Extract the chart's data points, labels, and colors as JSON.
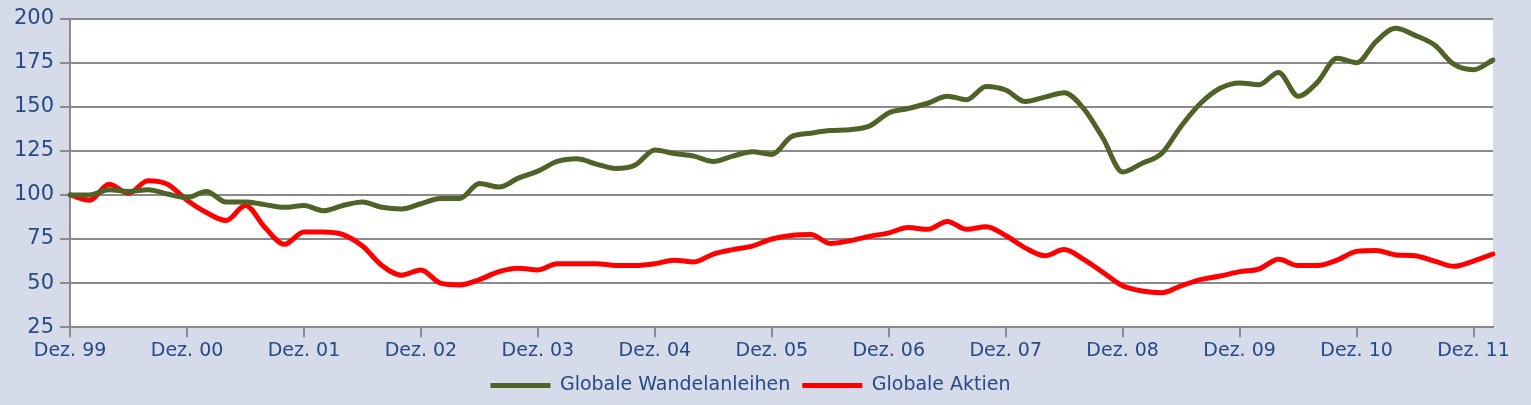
{
  "chart_data": {
    "type": "line",
    "categories": [
      "Dez. 99",
      null,
      null,
      null,
      null,
      null,
      "Dez. 00",
      null,
      null,
      null,
      null,
      null,
      "Dez. 01",
      null,
      null,
      null,
      null,
      null,
      "Dez. 02",
      null,
      null,
      null,
      null,
      null,
      "Dez. 03",
      null,
      null,
      null,
      null,
      null,
      "Dez. 04",
      null,
      null,
      null,
      null,
      null,
      "Dez. 05",
      null,
      null,
      null,
      null,
      null,
      "Dez. 06",
      null,
      null,
      null,
      null,
      null,
      "Dez. 07",
      null,
      null,
      null,
      null,
      null,
      "Dez. 08",
      null,
      null,
      null,
      null,
      null,
      "Dez. 09",
      null,
      null,
      null,
      null,
      null,
      "Dez. 10",
      null,
      null,
      null,
      null,
      null,
      "Dez. 11",
      null
    ],
    "series": [
      {
        "name": "Globale Wandelanleihen",
        "color": "#4f6228",
        "values": [
          100,
          100,
          103,
          102,
          103,
          100.5,
          98.5,
          102,
          96,
          96,
          94.5,
          93,
          94,
          91,
          94,
          96,
          93,
          92,
          95,
          98,
          98,
          106.5,
          104.5,
          109.5,
          113.5,
          119,
          120.5,
          117.5,
          115,
          117,
          125.5,
          123.5,
          122,
          119,
          122,
          124.5,
          123,
          133,
          135,
          136.5,
          137,
          139,
          146.5,
          149,
          152,
          156,
          154,
          161.5,
          159.5,
          153,
          155.5,
          158,
          149,
          132,
          113,
          118,
          123.5,
          139,
          152,
          160.5,
          163.5,
          162.5,
          169.5,
          156,
          164,
          177.5,
          175,
          187,
          194.5,
          190.5,
          185,
          174,
          171,
          176.5
        ]
      },
      {
        "name": "Globale Aktien",
        "color": "#ff0000",
        "values": [
          100,
          97,
          106,
          101,
          108,
          106,
          97,
          90,
          85.5,
          94,
          81.5,
          72,
          79,
          79,
          77.5,
          71,
          60,
          54.5,
          57.5,
          50,
          49,
          52,
          56.5,
          58.5,
          57.5,
          61,
          61,
          61,
          60,
          60,
          61,
          63,
          62,
          66.5,
          69,
          71,
          75,
          77,
          77.5,
          72.5,
          74,
          76.5,
          78.5,
          81.5,
          80.5,
          85,
          80.5,
          82,
          77,
          70,
          65.5,
          69,
          63.5,
          56,
          48.5,
          45.5,
          44.5,
          48.5,
          52,
          54,
          56.5,
          58,
          63.5,
          60,
          60,
          63,
          68,
          68.5,
          66,
          65.5,
          62.5,
          59.5,
          62.5,
          66.5
        ]
      }
    ],
    "ylim": [
      25,
      200
    ],
    "yticks": [
      25,
      50,
      75,
      100,
      125,
      150,
      175,
      200
    ],
    "grid": "y",
    "legend": "bottom"
  }
}
